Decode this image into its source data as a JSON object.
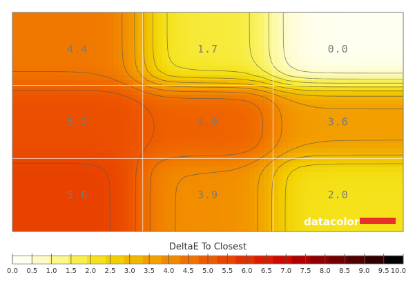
{
  "chart_data": {
    "type": "heatmap",
    "title": "DeltaE To Closest",
    "rows": 3,
    "cols": 3,
    "values": [
      [
        4.4,
        1.7,
        0.0
      ],
      [
        5.3,
        4.9,
        3.6
      ],
      [
        5.6,
        3.9,
        2.0
      ]
    ],
    "value_labels": [
      [
        "4.4",
        "1.7",
        "0.0"
      ],
      [
        "5.3",
        "4.9",
        "3.6"
      ],
      [
        "5.6",
        "3.9",
        "2.0"
      ]
    ],
    "colorbar": {
      "range": [
        0.0,
        10.0
      ],
      "ticks": [
        "0.0",
        "0.5",
        "1.0",
        "1.5",
        "2.0",
        "2.5",
        "3.0",
        "3.5",
        "4.0",
        "4.5",
        "5.0",
        "5.5",
        "6.0",
        "6.5",
        "7.0",
        "7.5",
        "8.0",
        "8.5",
        "9.0",
        "9.5",
        "10.0"
      ],
      "colors": [
        "#fffff0",
        "#fdfbc4",
        "#fbf78a",
        "#f8ef4e",
        "#f5e21a",
        "#f2cf00",
        "#f2b800",
        "#f2a100",
        "#f28a00",
        "#f07300",
        "#ee5c00",
        "#e94500",
        "#e23000",
        "#d91c00",
        "#cc0a00",
        "#b00000",
        "#900000",
        "#700000",
        "#500000",
        "#300000",
        "#000000"
      ]
    },
    "grid": true,
    "contours": true
  },
  "logo": {
    "text": "datacolor",
    "bar_color": "#e8302a"
  }
}
